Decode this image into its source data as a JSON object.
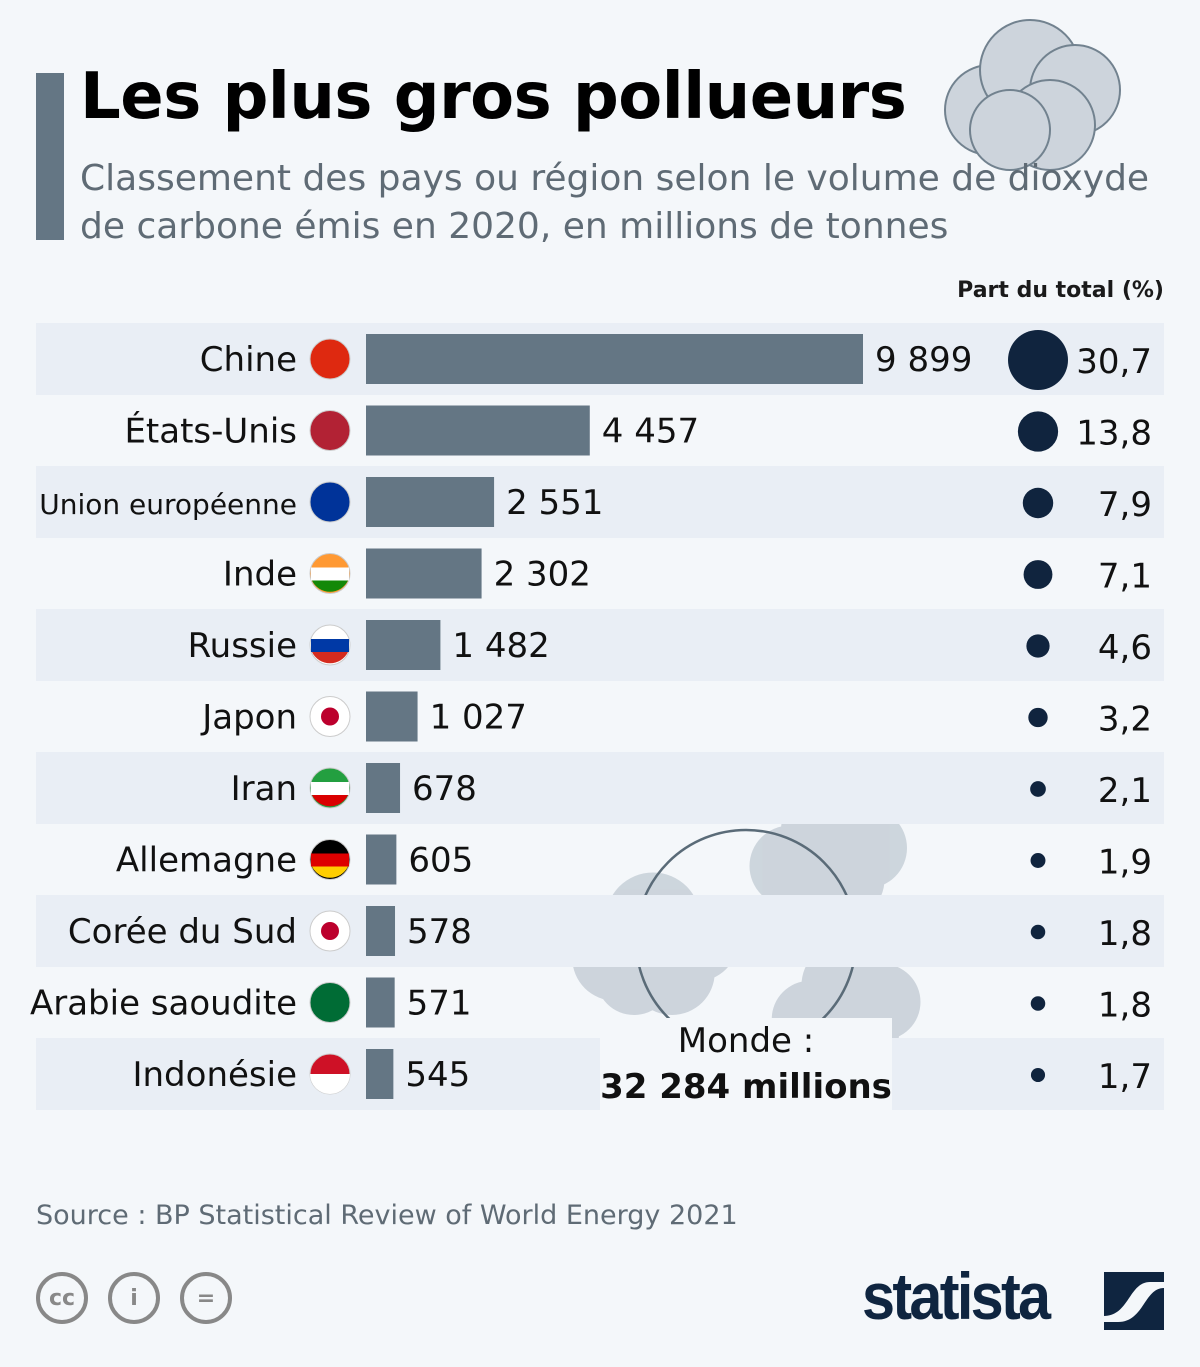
{
  "title": "Les plus gros pollueurs",
  "subtitle": "Classement des pays ou région selon le volume de dioxyde de carbone émis en 2020, en millions de tonnes",
  "share_header": "Part du total (%)",
  "world": {
    "label": "Monde :",
    "value": "32 284 millions"
  },
  "source": "Source : BP Statistical Review of World Energy 2021",
  "brand": "statista",
  "colors": {
    "bar": "#647684",
    "dot": "#10243e",
    "band": "#e9eef5",
    "bg": "#f4f7fa"
  },
  "chart_data": {
    "type": "bar",
    "title": "Les plus gros pollueurs",
    "categories": [
      "Chine",
      "États-Unis",
      "Union européenne",
      "Inde",
      "Russie",
      "Japon",
      "Iran",
      "Allemagne",
      "Corée du Sud",
      "Arabie saoudite",
      "Indonésie"
    ],
    "values": [
      9899,
      4457,
      2551,
      2302,
      1482,
      1027,
      678,
      605,
      578,
      571,
      545
    ],
    "value_labels": [
      "9 899",
      "4 457",
      "2 551",
      "2 302",
      "1 482",
      "1 027",
      "678",
      "605",
      "578",
      "571",
      "545"
    ],
    "share": [
      30.7,
      13.8,
      7.9,
      7.1,
      4.6,
      3.2,
      2.1,
      1.9,
      1.8,
      1.8,
      1.7
    ],
    "share_labels": [
      "30,7",
      "13,8",
      "7,9",
      "7,1",
      "4,6",
      "3,2",
      "2,1",
      "1,9",
      "1,8",
      "1,8",
      "1,7"
    ],
    "flags": [
      "cn",
      "us",
      "eu",
      "in",
      "ru",
      "jp",
      "ir",
      "de",
      "kr",
      "sa",
      "id"
    ],
    "xlabel": "",
    "ylabel": "millions de tonnes"
  }
}
